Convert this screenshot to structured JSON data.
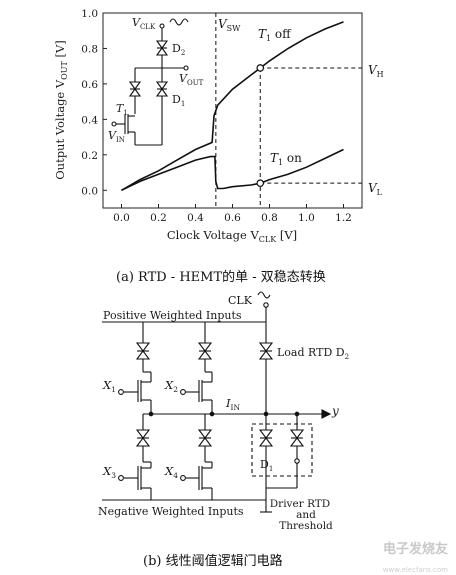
{
  "part_a": {
    "chart_data": {
      "type": "line",
      "title": "",
      "xlabel": "Clock Voltage V",
      "xlabel_sub": "CLK",
      "xlabel_unit": " [V]",
      "ylabel": "Output Voltage V",
      "ylabel_sub": "OUT",
      "ylabel_unit": " [V]",
      "xlim": [
        -0.1,
        1.3
      ],
      "ylim": [
        -0.1,
        1.0
      ],
      "x_ticks": [
        0.0,
        0.2,
        0.4,
        0.6,
        0.8,
        1.0,
        1.2
      ],
      "x_tick_labels": [
        "0.0",
        "0.2",
        "0.4",
        "0.6",
        "0.8",
        "1.0",
        "1.2"
      ],
      "y_ticks": [
        0.0,
        0.2,
        0.4,
        0.6,
        0.8,
        1.0
      ],
      "y_tick_labels": [
        "0.0",
        "0.2",
        "0.4",
        "0.6",
        "0.8",
        "1.0"
      ],
      "series": [
        {
          "name": "T1 off",
          "x": [
            0.0,
            0.1,
            0.2,
            0.3,
            0.4,
            0.49,
            0.5,
            0.52,
            0.6,
            0.7,
            0.75,
            0.8,
            0.9,
            1.0,
            1.1,
            1.2
          ],
          "y": [
            0.0,
            0.06,
            0.11,
            0.17,
            0.23,
            0.27,
            0.42,
            0.48,
            0.57,
            0.65,
            0.69,
            0.73,
            0.8,
            0.86,
            0.91,
            0.95
          ]
        },
        {
          "name": "T1 on",
          "x": [
            0.0,
            0.1,
            0.2,
            0.3,
            0.4,
            0.48,
            0.505,
            0.51,
            0.52,
            0.55,
            0.6,
            0.7,
            0.75,
            0.8,
            0.9,
            1.0,
            1.1,
            1.2
          ],
          "y": [
            0.0,
            0.05,
            0.09,
            0.13,
            0.17,
            0.19,
            0.19,
            0.05,
            0.01,
            0.01,
            0.02,
            0.03,
            0.04,
            0.06,
            0.09,
            0.13,
            0.18,
            0.23
          ]
        }
      ],
      "vsw_x": 0.51,
      "marker_x": 0.75,
      "vh_y": 0.69,
      "vl_y": 0.04
    },
    "labels": {
      "vsw": "V",
      "vsw_sub": "SW",
      "t1_off_t": "T",
      "t1_off_sub": "1",
      "t1_off_rest": " off",
      "t1_on_t": "T",
      "t1_on_sub": "1",
      "t1_on_rest": " on",
      "vh": "V",
      "vh_sub": "H",
      "vl": "V",
      "vl_sub": "L"
    },
    "inset": {
      "vclk": "V",
      "vclk_sub": "CLK",
      "d2": "D",
      "d2_sub": "2",
      "d1": "D",
      "d1_sub": "1",
      "vout": "V",
      "vout_sub": "OUT",
      "t1": "T",
      "t1_sub": "1",
      "vin": "V",
      "vin_sub": "IN"
    },
    "caption": "(a) RTD - HEMT的单 - 双稳态转换"
  },
  "part_b": {
    "clk": "CLK",
    "positive_inputs": "Positive Weighted Inputs",
    "negative_inputs": "Negative Weighted Inputs",
    "load_rtd": "Load RTD D",
    "load_rtd_sub": "2",
    "x1": "X",
    "x1_sub": "1",
    "x2": "X",
    "x2_sub": "2",
    "x3": "X",
    "x3_sub": "3",
    "x4": "X",
    "x4_sub": "4",
    "iin": "I",
    "iin_sub": "IN",
    "y": "y",
    "d1": "D",
    "d1_sub": "1",
    "driver": [
      "Driver RTD",
      "and",
      "Threshold"
    ],
    "caption": "(b) 线性阈值逻辑门电路"
  },
  "watermark": {
    "main": "电子发烧友",
    "sub": "www.elecfans.com"
  }
}
